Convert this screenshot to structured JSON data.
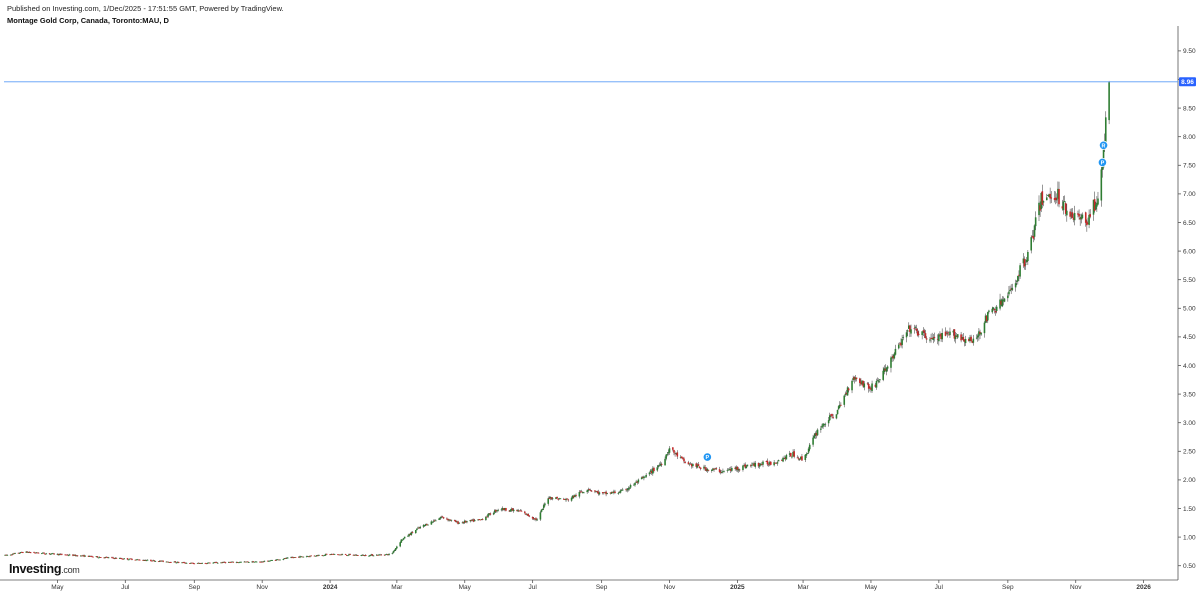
{
  "header": {
    "published_line": "Published on Investing.com, 1/Dec/2025 - 17:51:55 GMT, Powered by TradingView.",
    "symbol_line": "Montage Gold Corp, Canada, Toronto:MAU, D"
  },
  "logo": {
    "brand": "Investing",
    "suffix": ".com"
  },
  "colors": {
    "up": "#26a69a",
    "down": "#ef5350",
    "line": "#5b9cf6",
    "badge": "#2962ff",
    "marker": "#2196f3"
  },
  "chart_data": {
    "type": "candlestick",
    "title": "Montage Gold Corp, Canada, Toronto:MAU, D",
    "ylim": [
      0.25,
      9.9
    ],
    "yticks": [
      "9.50",
      "9.00",
      "8.50",
      "8.00",
      "7.50",
      "7.00",
      "6.50",
      "6.00",
      "5.50",
      "5.00",
      "4.50",
      "4.00",
      "3.50",
      "3.00",
      "2.50",
      "2.00",
      "1.50",
      "1.00",
      "0.50"
    ],
    "ytick_values": [
      9.5,
      9.0,
      8.5,
      8.0,
      7.5,
      7.0,
      6.5,
      6.0,
      5.5,
      5.0,
      4.5,
      4.0,
      3.5,
      3.0,
      2.5,
      2.0,
      1.5,
      1.0,
      0.5
    ],
    "xticks": [
      "May",
      "Jul",
      "Sep",
      "Nov",
      "2024",
      "Mar",
      "May",
      "Jul",
      "Sep",
      "Nov",
      "2025",
      "Mar",
      "May",
      "Jul",
      "Sep",
      "Nov",
      "2026"
    ],
    "xtick_dates": [
      "2023-05-01",
      "2023-07-01",
      "2023-09-01",
      "2023-11-01",
      "2024-01-01",
      "2024-03-01",
      "2024-05-01",
      "2024-07-01",
      "2024-09-01",
      "2024-11-01",
      "2025-01-01",
      "2025-03-01",
      "2025-05-01",
      "2025-07-01",
      "2025-09-01",
      "2025-11-01",
      "2026-01-01"
    ],
    "date_range": [
      "2023-03-14",
      "2026-01-31"
    ],
    "last_price": 8.96,
    "last_price_label": "8.96",
    "price_path": [
      [
        "2023-03-15",
        0.68
      ],
      [
        "2023-04-01",
        0.74
      ],
      [
        "2023-05-01",
        0.7
      ],
      [
        "2023-06-01",
        0.66
      ],
      [
        "2023-07-01",
        0.62
      ],
      [
        "2023-08-01",
        0.58
      ],
      [
        "2023-09-01",
        0.54
      ],
      [
        "2023-10-01",
        0.56
      ],
      [
        "2023-11-01",
        0.57
      ],
      [
        "2023-12-01",
        0.65
      ],
      [
        "2024-01-01",
        0.7
      ],
      [
        "2024-02-01",
        0.68
      ],
      [
        "2024-02-25",
        0.7
      ],
      [
        "2024-03-05",
        0.95
      ],
      [
        "2024-03-20",
        1.15
      ],
      [
        "2024-04-10",
        1.35
      ],
      [
        "2024-04-25",
        1.25
      ],
      [
        "2024-05-15",
        1.3
      ],
      [
        "2024-06-01",
        1.5
      ],
      [
        "2024-06-20",
        1.45
      ],
      [
        "2024-07-05",
        1.3
      ],
      [
        "2024-07-15",
        1.7
      ],
      [
        "2024-08-01",
        1.65
      ],
      [
        "2024-08-20",
        1.85
      ],
      [
        "2024-09-01",
        1.75
      ],
      [
        "2024-09-20",
        1.8
      ],
      [
        "2024-10-10",
        2.05
      ],
      [
        "2024-10-25",
        2.3
      ],
      [
        "2024-11-01",
        2.55
      ],
      [
        "2024-11-15",
        2.3
      ],
      [
        "2024-12-01",
        2.2
      ],
      [
        "2024-12-20",
        2.15
      ],
      [
        "2025-01-10",
        2.25
      ],
      [
        "2025-02-01",
        2.3
      ],
      [
        "2025-02-20",
        2.45
      ],
      [
        "2025-03-01",
        2.35
      ],
      [
        "2025-03-15",
        2.9
      ],
      [
        "2025-04-01",
        3.2
      ],
      [
        "2025-04-15",
        3.8
      ],
      [
        "2025-05-01",
        3.6
      ],
      [
        "2025-05-10",
        3.8
      ],
      [
        "2025-05-25",
        4.3
      ],
      [
        "2025-06-05",
        4.65
      ],
      [
        "2025-06-25",
        4.45
      ],
      [
        "2025-07-15",
        4.55
      ],
      [
        "2025-08-01",
        4.4
      ],
      [
        "2025-08-15",
        4.9
      ],
      [
        "2025-09-01",
        5.2
      ],
      [
        "2025-09-20",
        6.0
      ],
      [
        "2025-10-01",
        6.9
      ],
      [
        "2025-10-15",
        7.0
      ],
      [
        "2025-10-25",
        6.7
      ],
      [
        "2025-11-10",
        6.5
      ],
      [
        "2025-11-20",
        6.9
      ],
      [
        "2025-11-25",
        7.4
      ],
      [
        "2025-11-28",
        8.3
      ],
      [
        "2025-12-01",
        8.96
      ]
    ],
    "markers": [
      {
        "date": "2024-12-05",
        "price": 2.4,
        "label": "P"
      },
      {
        "date": "2025-11-25",
        "price": 7.55,
        "label": "P"
      },
      {
        "date": "2025-11-26",
        "price": 7.85,
        "label": "R"
      }
    ]
  }
}
